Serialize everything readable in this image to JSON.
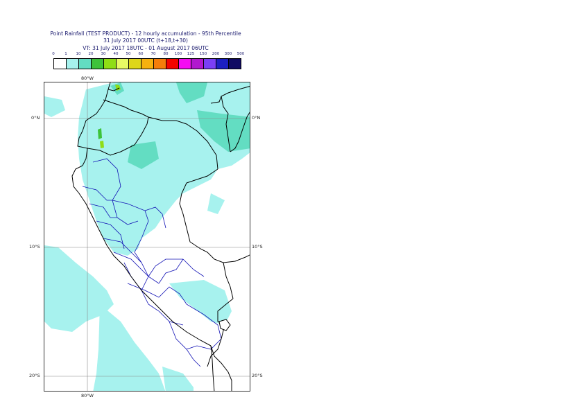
{
  "title": {
    "line1": "Point Rainfall (TEST PRODUCT) - 12 hourly accumulation - 95th Percentile",
    "line2": "31 July 2017 00UTC (t+18,t+30)",
    "line3": "VT: 31 July 2017 18UTC - 01 August 2017 06UTC"
  },
  "legend": {
    "thresholds": [
      "0",
      "1",
      "10",
      "20",
      "30",
      "40",
      "50",
      "60",
      "70",
      "80",
      "100",
      "125",
      "150",
      "200",
      "300",
      "500"
    ],
    "colors": [
      "#ffffff",
      "#a7f2ee",
      "#63ddc2",
      "#3ec33a",
      "#8fdd15",
      "#e7f964",
      "#ded61a",
      "#f6b10f",
      "#f57d0a",
      "#f40400",
      "#f40cf3",
      "#b118ce",
      "#7a3ff5",
      "#1c1fc2",
      "#100a63"
    ]
  },
  "axes": {
    "lon_top": "80°W",
    "lon_bottom": "80°W",
    "lat_0_left": "0°N",
    "lat_0_right": "0°N",
    "lat_10_left": "10°S",
    "lat_10_right": "10°S",
    "lat_20_left": "20°S",
    "lat_20_right": "20°S"
  },
  "map_colors": {
    "light_cyan": "#a7f2ee",
    "teal": "#63ddc2",
    "green": "#3ec33a",
    "coastline": "#000000",
    "admin_border": "#1212b5",
    "gridline": "#888888"
  }
}
